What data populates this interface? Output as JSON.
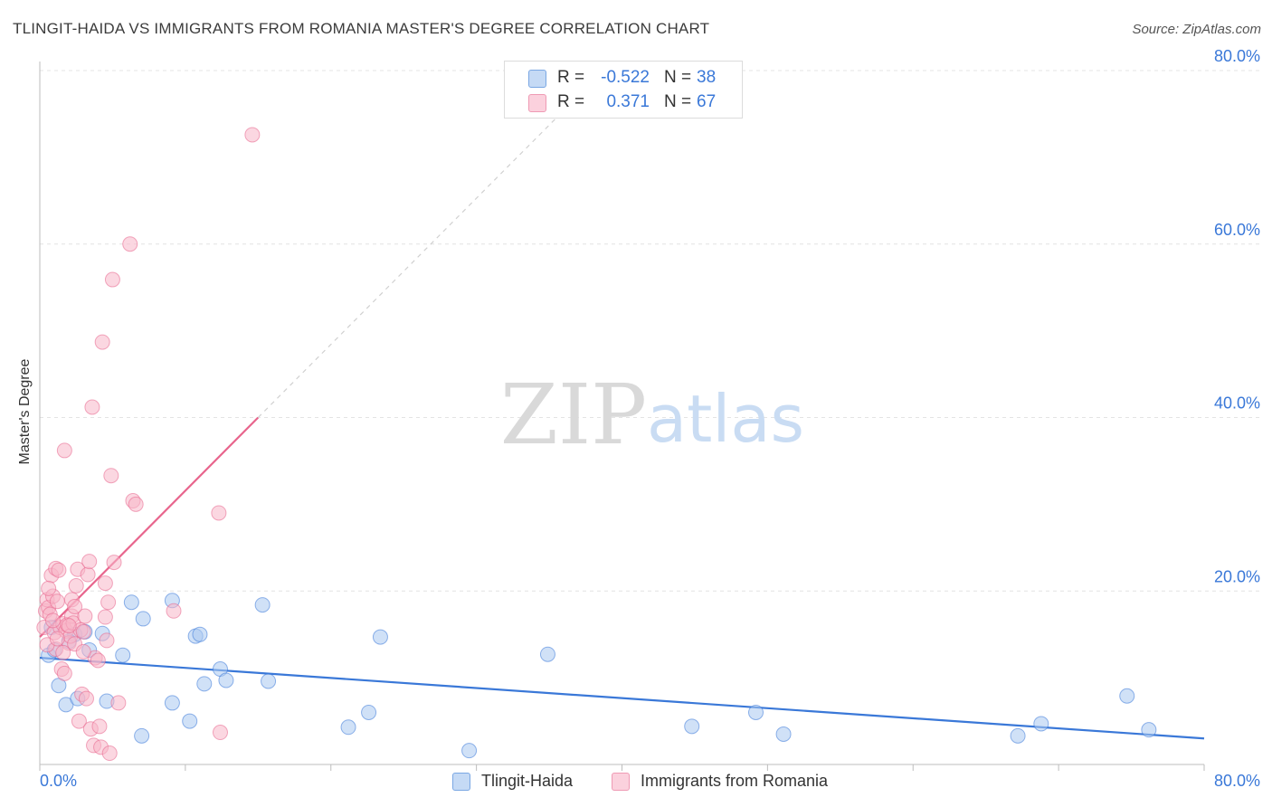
{
  "title": "TLINGIT-HAIDA VS IMMIGRANTS FROM ROMANIA MASTER'S DEGREE CORRELATION CHART",
  "source": "Source: ZipAtlas.com",
  "watermark": {
    "zip": "ZIP",
    "atlas": "atlas"
  },
  "legend_top": [
    {
      "r_label": "R =",
      "r_value": "-0.522",
      "n_label": "N =",
      "n_value": "38",
      "swatch_color": "#a9c8f0"
    },
    {
      "r_label": "R =",
      "r_value": "0.371",
      "n_label": "N =",
      "n_value": "67",
      "swatch_color": "#f7b6c8"
    }
  ],
  "legend_bottom": [
    {
      "label": "Tlingit-Haida",
      "swatch_color": "#a9c8f0"
    },
    {
      "label": "Immigrants from Romania",
      "swatch_color": "#f7b6c8"
    }
  ],
  "chart_data": {
    "type": "scatter",
    "title": "TLINGIT-HAIDA VS IMMIGRANTS FROM ROMANIA MASTER'S DEGREE CORRELATION CHART",
    "xlabel": "",
    "ylabel": "Master's Degree",
    "xlim": [
      0,
      80
    ],
    "ylim": [
      0,
      80
    ],
    "x_tick_labels": [
      "0.0%",
      "80.0%"
    ],
    "y_tick_labels": [
      {
        "value": 20,
        "label": "20.0%"
      },
      {
        "value": 40,
        "label": "40.0%"
      },
      {
        "value": 60,
        "label": "60.0%"
      },
      {
        "value": 80,
        "label": "80.0%"
      }
    ],
    "grid": true,
    "series": [
      {
        "name": "Tlingit-Haida",
        "color": "#3a78d8",
        "fill": "#a9c8f0",
        "points": [
          [
            0.6,
            12.6
          ],
          [
            1.0,
            13.2
          ],
          [
            1.3,
            9.1
          ],
          [
            1.8,
            6.9
          ],
          [
            2.4,
            15.0
          ],
          [
            2.6,
            7.6
          ],
          [
            3.1,
            15.3
          ],
          [
            3.4,
            13.2
          ],
          [
            4.3,
            15.1
          ],
          [
            4.6,
            7.3
          ],
          [
            5.7,
            12.6
          ],
          [
            6.3,
            18.7
          ],
          [
            7.0,
            3.3
          ],
          [
            7.1,
            16.8
          ],
          [
            9.1,
            18.9
          ],
          [
            9.1,
            7.1
          ],
          [
            10.3,
            5.0
          ],
          [
            10.7,
            14.8
          ],
          [
            11.0,
            15.0
          ],
          [
            11.3,
            9.3
          ],
          [
            12.4,
            11.0
          ],
          [
            12.8,
            9.7
          ],
          [
            15.3,
            18.4
          ],
          [
            15.7,
            9.6
          ],
          [
            21.2,
            4.3
          ],
          [
            22.6,
            6.0
          ],
          [
            23.4,
            14.7
          ],
          [
            29.5,
            1.6
          ],
          [
            34.9,
            12.7
          ],
          [
            44.8,
            4.4
          ],
          [
            49.2,
            6.0
          ],
          [
            51.1,
            3.5
          ],
          [
            67.2,
            3.3
          ],
          [
            68.8,
            4.7
          ],
          [
            74.7,
            7.9
          ],
          [
            76.2,
            4.0
          ],
          [
            0.8,
            15.8
          ],
          [
            2.0,
            14.2
          ]
        ],
        "trendline": {
          "x": [
            0,
            80
          ],
          "y": [
            12.3,
            3.0
          ]
        }
      },
      {
        "name": "Immigrants from Romania",
        "color": "#e8658d",
        "fill": "#f7b6c8",
        "points": [
          [
            0.3,
            15.8
          ],
          [
            0.4,
            17.7
          ],
          [
            0.5,
            19.0
          ],
          [
            0.6,
            18.1
          ],
          [
            0.7,
            17.3
          ],
          [
            0.8,
            21.8
          ],
          [
            0.9,
            19.4
          ],
          [
            1.0,
            15.2
          ],
          [
            1.1,
            13.3
          ],
          [
            1.1,
            22.6
          ],
          [
            1.2,
            18.8
          ],
          [
            1.3,
            22.4
          ],
          [
            1.4,
            15.8
          ],
          [
            1.5,
            11.0
          ],
          [
            1.6,
            16.2
          ],
          [
            1.7,
            10.5
          ],
          [
            1.7,
            36.2
          ],
          [
            1.8,
            15.4
          ],
          [
            1.9,
            16.1
          ],
          [
            2.0,
            14.0
          ],
          [
            2.1,
            14.8
          ],
          [
            2.2,
            19.0
          ],
          [
            2.2,
            17.1
          ],
          [
            2.3,
            16.3
          ],
          [
            2.4,
            13.9
          ],
          [
            2.5,
            20.6
          ],
          [
            2.6,
            22.5
          ],
          [
            2.7,
            5.0
          ],
          [
            2.8,
            15.5
          ],
          [
            2.9,
            8.1
          ],
          [
            3.0,
            15.3
          ],
          [
            3.1,
            17.1
          ],
          [
            3.2,
            7.6
          ],
          [
            3.3,
            21.9
          ],
          [
            3.4,
            23.4
          ],
          [
            3.5,
            4.1
          ],
          [
            3.6,
            41.2
          ],
          [
            3.7,
            2.2
          ],
          [
            3.8,
            12.3
          ],
          [
            4.0,
            12.0
          ],
          [
            4.1,
            4.4
          ],
          [
            4.2,
            2.0
          ],
          [
            4.3,
            48.7
          ],
          [
            4.5,
            17.0
          ],
          [
            4.5,
            20.9
          ],
          [
            4.6,
            14.3
          ],
          [
            4.7,
            18.7
          ],
          [
            4.8,
            1.3
          ],
          [
            4.9,
            33.3
          ],
          [
            5.0,
            55.9
          ],
          [
            5.1,
            23.3
          ],
          [
            5.4,
            7.1
          ],
          [
            6.2,
            60.0
          ],
          [
            6.4,
            30.4
          ],
          [
            6.6,
            30.0
          ],
          [
            9.2,
            17.7
          ],
          [
            12.3,
            29.0
          ],
          [
            12.4,
            3.7
          ],
          [
            14.6,
            72.6
          ],
          [
            0.5,
            13.8
          ],
          [
            0.9,
            16.6
          ],
          [
            1.2,
            14.5
          ],
          [
            1.6,
            12.9
          ],
          [
            2.0,
            16.0
          ],
          [
            2.4,
            18.2
          ],
          [
            3.0,
            13.0
          ],
          [
            0.6,
            20.3
          ]
        ],
        "trendline": {
          "x": [
            0,
            15
          ],
          "y": [
            14.7,
            40.0
          ]
        },
        "trendline_extension": {
          "x": [
            15,
            36
          ],
          "y": [
            40.0,
            75.4
          ]
        }
      }
    ]
  }
}
